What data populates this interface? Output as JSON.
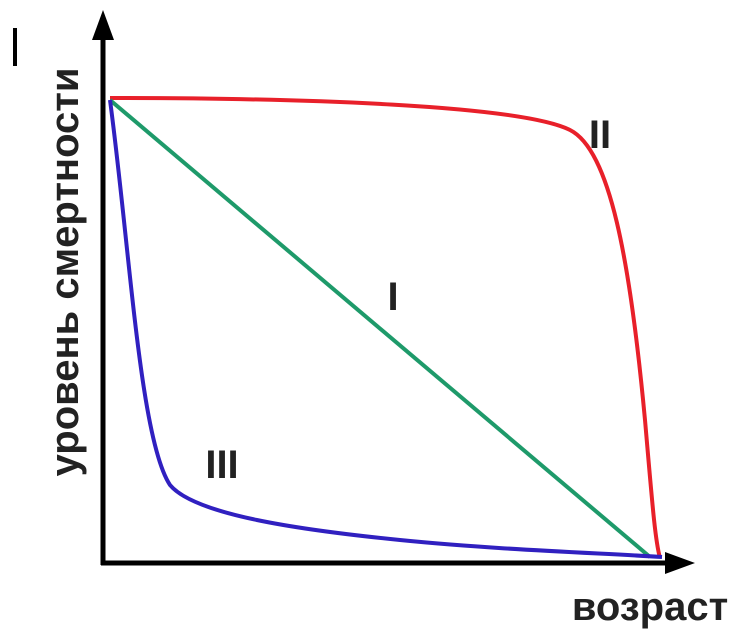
{
  "axes": {
    "y_label": "уровень смертности",
    "x_label": "возраст"
  },
  "curves": [
    {
      "label": "I"
    },
    {
      "label": "II"
    },
    {
      "label": "III"
    }
  ]
}
